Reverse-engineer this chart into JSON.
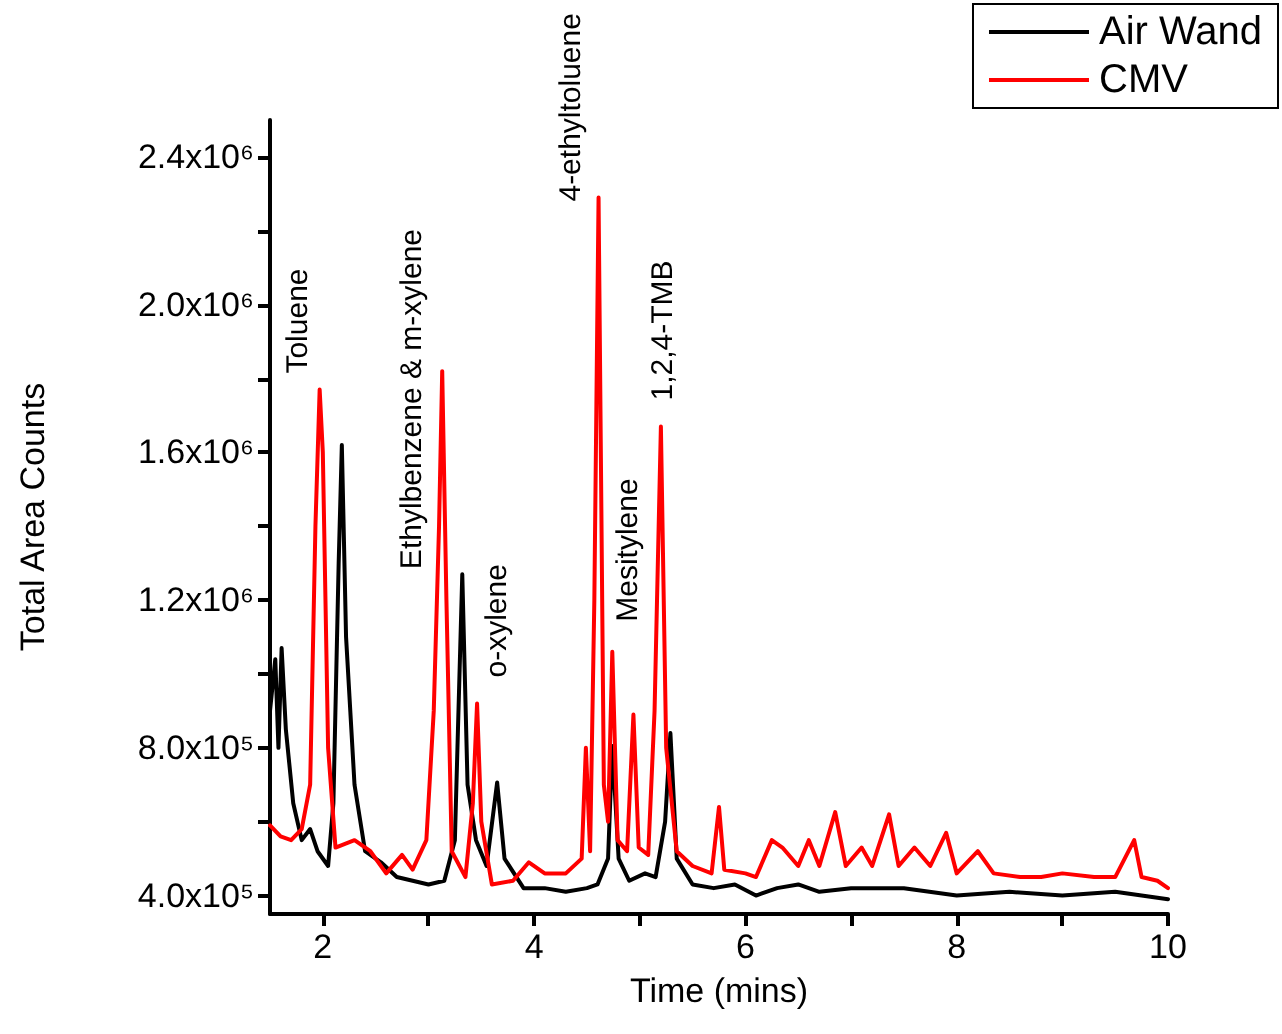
{
  "chart_data": {
    "type": "line",
    "xlabel": "Time (mins)",
    "ylabel": "Total Area Counts",
    "xlim": [
      1.5,
      10
    ],
    "ylim": [
      350000,
      2500000
    ],
    "xticks": [
      2,
      {
        "value": 3,
        "label": null
      },
      4,
      {
        "value": 5,
        "label": null
      },
      6,
      {
        "value": 7,
        "label": null
      },
      8,
      {
        "value": 9,
        "label": null
      },
      10
    ],
    "yticks": [
      {
        "value": 400000,
        "label": "4.0x10⁵"
      },
      {
        "value": 600000,
        "label": null
      },
      {
        "value": 800000,
        "label": "8.0x10⁵"
      },
      {
        "value": 1000000,
        "label": null
      },
      {
        "value": 1200000,
        "label": "1.2x10⁶"
      },
      {
        "value": 1400000,
        "label": null
      },
      {
        "value": 1600000,
        "label": "1.6x10⁶"
      },
      {
        "value": 1800000,
        "label": null
      },
      {
        "value": 2000000,
        "label": "2.0x10⁶"
      },
      {
        "value": 2200000,
        "label": null
      },
      {
        "value": 2400000,
        "label": "2.4x10⁶"
      }
    ],
    "grid": false,
    "legend": "top right",
    "marker": "none",
    "line_style": "solid",
    "annotations": [
      {
        "text": "Toluene",
        "x": 1.97,
        "y": 1770000
      },
      {
        "text": "Ethylbenzene & m-xylene",
        "x": 3.13,
        "y": 1820000
      },
      {
        "text": "o-xylene",
        "x": 3.46,
        "y": 920000
      },
      {
        "text": "4-ethyltoluene",
        "x": 4.61,
        "y": 2290000
      },
      {
        "text": "Mesitylene",
        "x": 4.74,
        "y": 1060000
      },
      {
        "text": "1,2,4-TMB",
        "x": 5.2,
        "y": 1670000
      }
    ],
    "series": [
      {
        "name": "Air Wand",
        "color": "#000000",
        "x": [
          1.5,
          1.55,
          1.58,
          1.61,
          1.65,
          1.72,
          1.8,
          1.88,
          1.95,
          2.05,
          2.1,
          2.15,
          2.18,
          2.22,
          2.3,
          2.4,
          2.55,
          2.7,
          2.85,
          3.0,
          3.15,
          3.25,
          3.32,
          3.37,
          3.45,
          3.55,
          3.65,
          3.72,
          3.9,
          4.1,
          4.3,
          4.5,
          4.6,
          4.7,
          4.74,
          4.8,
          4.9,
          5.05,
          5.15,
          5.24,
          5.29,
          5.35,
          5.5,
          5.7,
          5.9,
          6.1,
          6.3,
          6.5,
          6.7,
          7.0,
          7.5,
          8.0,
          8.5,
          9.0,
          9.5,
          10
        ],
        "values": [
          900000,
          1040000,
          800000,
          1070000,
          850000,
          650000,
          550000,
          580000,
          520000,
          480000,
          650000,
          1300000,
          1620000,
          1100000,
          700000,
          520000,
          490000,
          450000,
          440000,
          430000,
          440000,
          550000,
          1270000,
          700000,
          550000,
          480000,
          706000,
          500000,
          420000,
          420000,
          410000,
          420000,
          430000,
          500000,
          805000,
          500000,
          440000,
          460000,
          450000,
          600000,
          840000,
          500000,
          430000,
          420000,
          430000,
          400000,
          420000,
          430000,
          410000,
          420000,
          420000,
          400000,
          410000,
          400000,
          410000,
          390000
        ]
      },
      {
        "name": "CMV",
        "color": "#ff0000",
        "x": [
          1.5,
          1.6,
          1.7,
          1.8,
          1.88,
          1.93,
          1.97,
          2.0,
          2.05,
          2.12,
          2.3,
          2.45,
          2.6,
          2.75,
          2.85,
          2.98,
          3.05,
          3.1,
          3.13,
          3.17,
          3.22,
          3.35,
          3.42,
          3.46,
          3.5,
          3.6,
          3.8,
          3.95,
          4.1,
          4.3,
          4.45,
          4.49,
          4.53,
          4.57,
          4.61,
          4.66,
          4.7,
          4.74,
          4.79,
          4.88,
          4.94,
          4.99,
          5.08,
          5.14,
          5.2,
          5.25,
          5.35,
          5.5,
          5.68,
          5.75,
          5.8,
          6.0,
          6.1,
          6.25,
          6.35,
          6.5,
          6.6,
          6.7,
          6.85,
          6.95,
          7.1,
          7.2,
          7.36,
          7.45,
          7.6,
          7.75,
          7.9,
          8.0,
          8.2,
          8.35,
          8.6,
          8.8,
          9.0,
          9.3,
          9.5,
          9.68,
          9.75,
          9.9,
          10
        ],
        "values": [
          590000,
          560000,
          550000,
          580000,
          700000,
          1400000,
          1770000,
          1600000,
          800000,
          530000,
          550000,
          520000,
          460000,
          510000,
          470000,
          550000,
          900000,
          1400000,
          1820000,
          1200000,
          520000,
          450000,
          650000,
          920000,
          600000,
          430000,
          440000,
          490000,
          460000,
          460000,
          500000,
          800000,
          520000,
          1200000,
          2290000,
          700000,
          600000,
          1060000,
          550000,
          520000,
          890000,
          530000,
          510000,
          900000,
          1670000,
          800000,
          520000,
          480000,
          460000,
          640000,
          470000,
          460000,
          450000,
          550000,
          530000,
          480000,
          550000,
          480000,
          626000,
          480000,
          530000,
          480000,
          620000,
          480000,
          530000,
          480000,
          570000,
          460000,
          520000,
          460000,
          450000,
          450000,
          460000,
          450000,
          450000,
          550000,
          450000,
          440000,
          420000
        ]
      }
    ]
  }
}
